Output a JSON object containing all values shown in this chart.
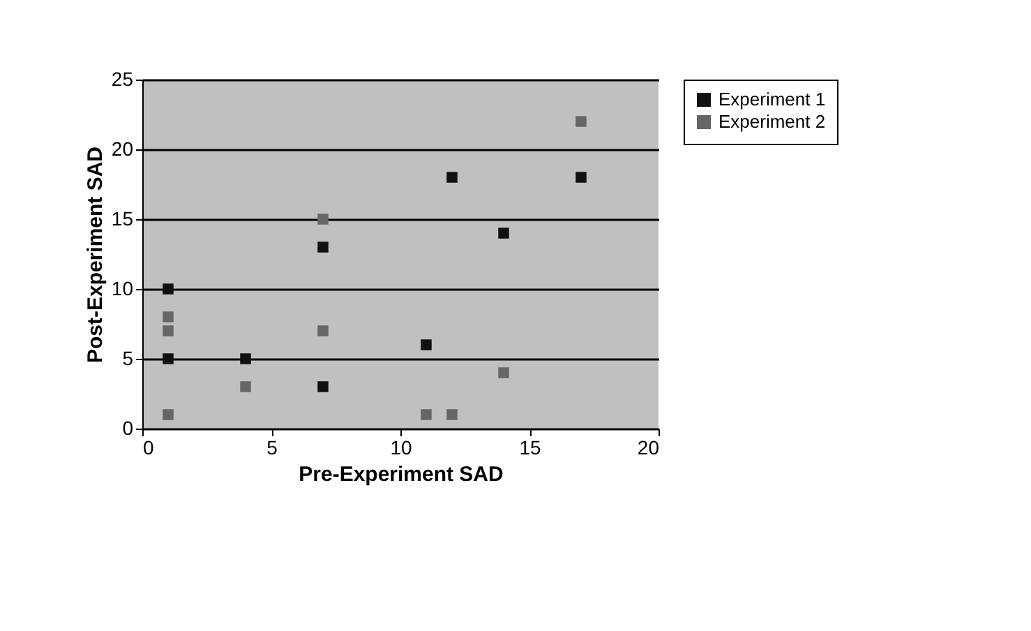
{
  "chart_data": {
    "type": "scatter",
    "xlabel": "Pre-Experiment SAD",
    "ylabel": "Post-Experiment SAD",
    "xlim": [
      0,
      20
    ],
    "xticks": [
      0,
      5,
      10,
      15,
      20
    ],
    "ylim": [
      0,
      25
    ],
    "yticks": [
      0,
      5,
      10,
      15,
      20,
      25
    ],
    "grid": "y",
    "legend": "right",
    "marker": "square",
    "series": [
      {
        "name": "Experiment 1",
        "color": "#111111",
        "x": [
          1,
          1,
          4,
          7,
          7,
          11,
          12,
          14,
          17
        ],
        "values": [
          10,
          5,
          5,
          13,
          3,
          6,
          18,
          14,
          18
        ]
      },
      {
        "name": "Experiment 2",
        "color": "#666666",
        "x": [
          1,
          1,
          1,
          4,
          7,
          7,
          11,
          12,
          14,
          17
        ],
        "values": [
          8,
          7,
          1,
          3,
          15,
          7,
          1,
          1,
          4,
          22
        ]
      }
    ]
  }
}
